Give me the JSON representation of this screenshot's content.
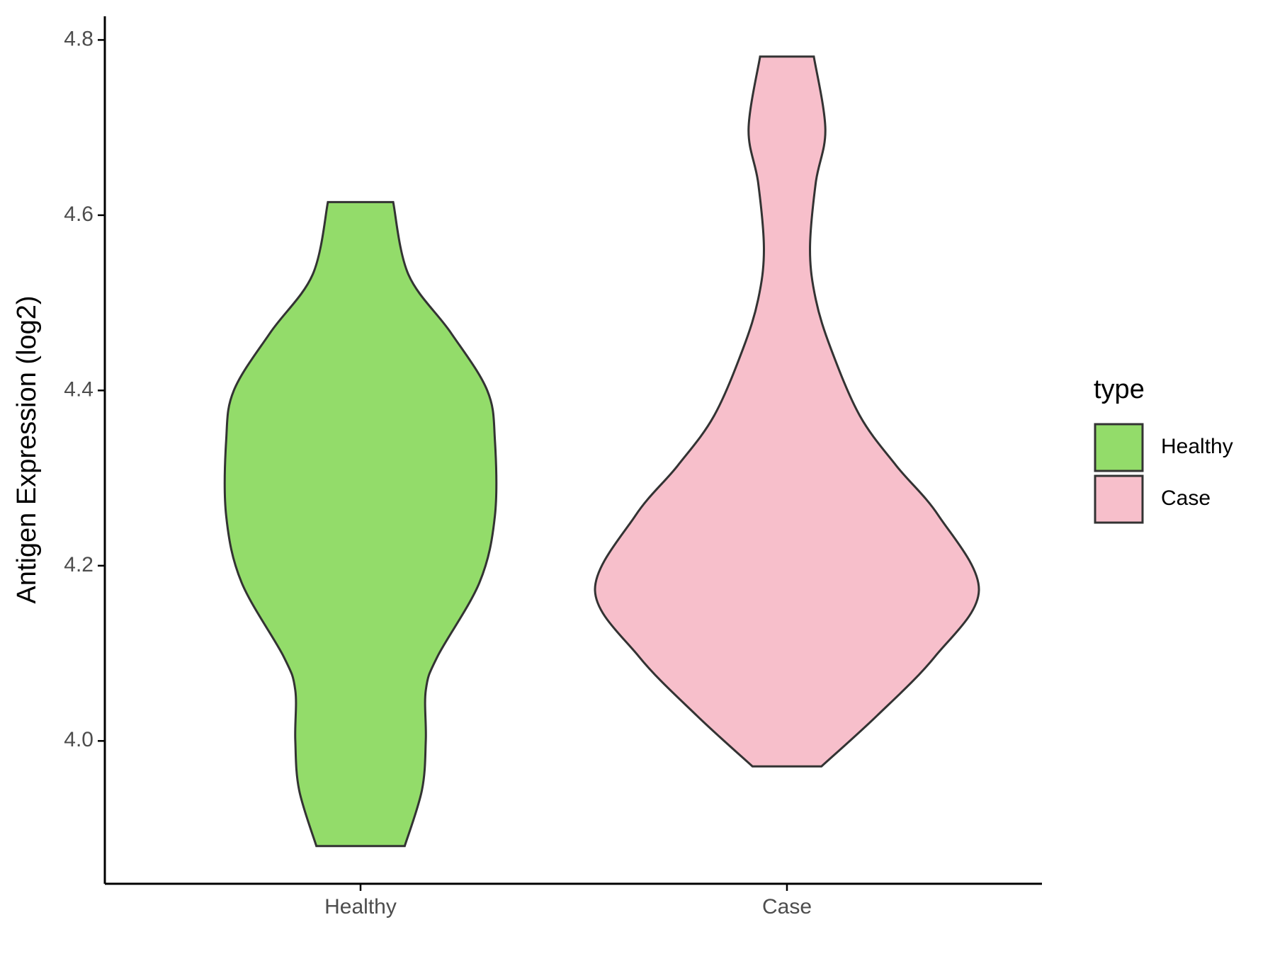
{
  "chart_data": {
    "type": "violin",
    "y_label": "Antigen Expression (log2)",
    "categories": [
      "Healthy",
      "Case"
    ],
    "legend_title": "type",
    "legend": "right",
    "ylim": [
      3.837,
      4.827
    ],
    "yticks": [
      {
        "value": 4.0,
        "label": "4.0"
      },
      {
        "value": 4.2,
        "label": "4.2"
      },
      {
        "value": 4.4,
        "label": "4.4"
      },
      {
        "value": 4.6,
        "label": "4.6"
      },
      {
        "value": 4.8,
        "label": "4.8"
      }
    ],
    "series": [
      {
        "name": "Healthy",
        "color": "#93dc6a",
        "y": [
          4.615,
          4.532,
          4.466,
          4.4,
          4.343,
          4.257,
          4.181,
          4.096,
          4.058,
          4.001,
          3.944,
          3.88
        ],
        "density": [
          0.17,
          0.25,
          0.47,
          0.66,
          0.7,
          0.7,
          0.62,
          0.4,
          0.34,
          0.34,
          0.32,
          0.23
        ]
      },
      {
        "name": "Case",
        "color": "#f7bfcb",
        "y": [
          4.781,
          4.698,
          4.637,
          4.561,
          4.504,
          4.447,
          4.371,
          4.314,
          4.257,
          4.172,
          4.096,
          4.029,
          3.971
        ],
        "density": [
          0.14,
          0.2,
          0.15,
          0.12,
          0.15,
          0.23,
          0.38,
          0.57,
          0.79,
          1,
          0.77,
          0.47,
          0.18
        ]
      }
    ]
  }
}
